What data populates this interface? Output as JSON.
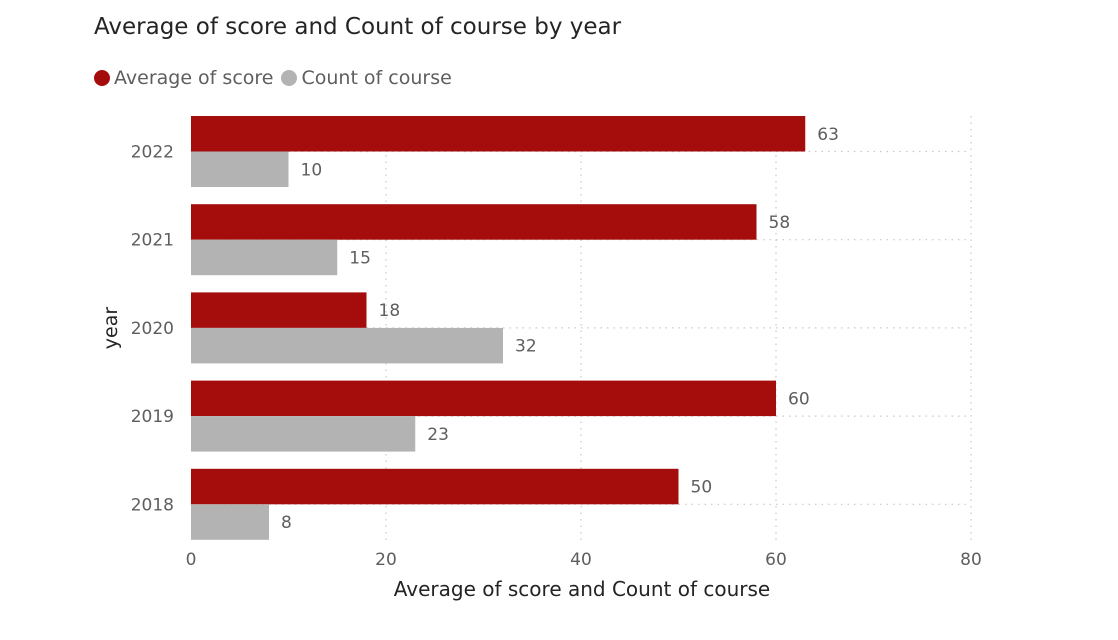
{
  "chart_data": {
    "type": "bar",
    "orientation": "horizontal",
    "title": "Average of score and Count of course by year",
    "xlabel": "Average of score and Count of course",
    "ylabel": "year",
    "categories": [
      "2022",
      "2021",
      "2020",
      "2019",
      "2018"
    ],
    "series": [
      {
        "name": "Average of score",
        "values": [
          63,
          58,
          18,
          60,
          50
        ],
        "color": "#a50d0d"
      },
      {
        "name": "Count of course",
        "values": [
          10,
          15,
          32,
          23,
          8
        ],
        "color": "#b3b3b3"
      }
    ],
    "xlim": [
      0,
      80
    ],
    "x_ticks": [
      0,
      20,
      40,
      60,
      80
    ],
    "grid": true,
    "legend_position": "top-left",
    "data_labels": true
  }
}
